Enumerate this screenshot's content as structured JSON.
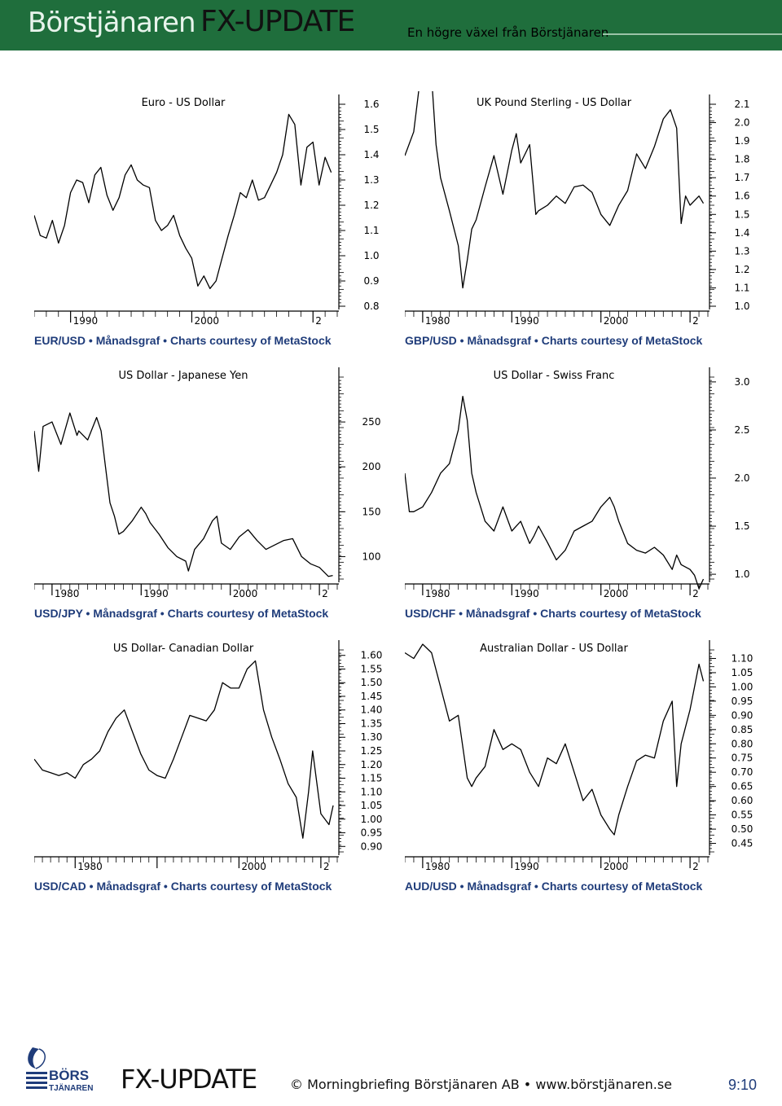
{
  "header": {
    "brand": "Börstjänaren",
    "product": "FX-UPDATE",
    "tagline": "En högre växel från Börstjänaren"
  },
  "chart_data": [
    {
      "type": "line",
      "title": "Euro - US Dollar",
      "caption": "EUR/USD • Månadsgraf • Charts courtesy of MetaStock",
      "x_ticks": [
        "1990",
        "2000",
        "2"
      ],
      "xlim": [
        1987,
        2012
      ],
      "y_ticks": [
        "0.8",
        "0.9",
        "1.0",
        "1.1",
        "1.2",
        "1.3",
        "1.4",
        "1.5",
        "1.6"
      ],
      "ylim": [
        0.8,
        1.6
      ],
      "x": [
        1987.0,
        1987.5,
        1988.0,
        1988.5,
        1989.0,
        1989.5,
        1990.0,
        1990.5,
        1991.0,
        1991.5,
        1992.0,
        1992.5,
        1993.0,
        1993.5,
        1994.0,
        1994.5,
        1995.0,
        1995.5,
        1996.0,
        1996.5,
        1997.0,
        1997.5,
        1998.0,
        1998.5,
        1999.0,
        1999.5,
        2000.0,
        2000.5,
        2001.0,
        2001.5,
        2002.0,
        2002.5,
        2003.0,
        2003.5,
        2004.0,
        2004.5,
        2005.0,
        2005.5,
        2006.0,
        2006.5,
        2007.0,
        2007.5,
        2008.0,
        2008.5,
        2009.0,
        2009.5,
        2010.0,
        2010.5,
        2011.0,
        2011.5
      ],
      "y": [
        1.16,
        1.08,
        1.07,
        1.14,
        1.05,
        1.12,
        1.25,
        1.3,
        1.29,
        1.21,
        1.32,
        1.35,
        1.24,
        1.18,
        1.23,
        1.32,
        1.36,
        1.3,
        1.28,
        1.27,
        1.14,
        1.1,
        1.12,
        1.16,
        1.08,
        1.03,
        0.99,
        0.88,
        0.92,
        0.87,
        0.9,
        0.99,
        1.08,
        1.16,
        1.25,
        1.23,
        1.3,
        1.22,
        1.23,
        1.28,
        1.33,
        1.4,
        1.56,
        1.52,
        1.28,
        1.43,
        1.45,
        1.28,
        1.39,
        1.33
      ]
    },
    {
      "type": "line",
      "title": "UK Pound Sterling - US Dollar",
      "caption": "GBP/USD • Månadsgraf • Charts courtesy of MetaStock",
      "x_ticks": [
        "1980",
        "1990",
        "2000",
        "2"
      ],
      "xlim": [
        1978,
        2012
      ],
      "y_ticks": [
        "1.0",
        "1.1",
        "1.2",
        "1.3",
        "1.4",
        "1.5",
        "1.6",
        "1.7",
        "1.8",
        "1.9",
        "2.0",
        "2.1"
      ],
      "ylim": [
        1.0,
        2.1
      ],
      "x": [
        1978,
        1979,
        1980,
        1980.8,
        1981.5,
        1982,
        1983,
        1984,
        1984.5,
        1985,
        1985.5,
        1986,
        1987,
        1988,
        1989,
        1990,
        1990.5,
        1991,
        1992,
        1992.7,
        1993,
        1994,
        1995,
        1996,
        1997,
        1998,
        1999,
        2000,
        2001,
        2002,
        2003,
        2004,
        2005,
        2006,
        2007,
        2007.8,
        2008.5,
        2009,
        2009.5,
        2010,
        2011,
        2011.5
      ],
      "y": [
        1.82,
        1.95,
        2.35,
        2.4,
        1.88,
        1.7,
        1.52,
        1.33,
        1.1,
        1.25,
        1.42,
        1.47,
        1.65,
        1.82,
        1.61,
        1.85,
        1.94,
        1.78,
        1.88,
        1.5,
        1.52,
        1.55,
        1.6,
        1.56,
        1.65,
        1.66,
        1.62,
        1.5,
        1.44,
        1.55,
        1.63,
        1.83,
        1.75,
        1.87,
        2.02,
        2.07,
        1.97,
        1.45,
        1.6,
        1.55,
        1.6,
        1.56
      ]
    },
    {
      "type": "line",
      "title": "US Dollar - Japanese Yen",
      "caption": "USD/JPY • Månadsgraf • Charts courtesy of MetaStock",
      "x_ticks": [
        "1980",
        "1990",
        "2000",
        "2"
      ],
      "xlim": [
        1978,
        2012
      ],
      "y_ticks": [
        "100",
        "150",
        "200",
        "250"
      ],
      "ylim": [
        75,
        300
      ],
      "x": [
        1978,
        1978.5,
        1979,
        1980,
        1981,
        1982,
        1982.8,
        1983,
        1984,
        1985,
        1985.5,
        1986,
        1986.5,
        1987,
        1987.5,
        1988,
        1989,
        1990,
        1990.5,
        1991,
        1992,
        1993,
        1994,
        1995,
        1995.3,
        1996,
        1997,
        1998,
        1998.5,
        1999,
        2000,
        2001,
        2002,
        2003,
        2004,
        2005,
        2006,
        2007,
        2008,
        2008.5,
        2009,
        2010,
        2011,
        2011.5
      ],
      "y": [
        240,
        195,
        245,
        250,
        225,
        260,
        235,
        240,
        230,
        255,
        240,
        200,
        160,
        145,
        125,
        128,
        140,
        155,
        148,
        138,
        125,
        110,
        100,
        95,
        84,
        108,
        120,
        140,
        145,
        115,
        108,
        122,
        130,
        118,
        108,
        113,
        118,
        120,
        100,
        96,
        92,
        88,
        78,
        79
      ]
    },
    {
      "type": "line",
      "title": "US Dollar - Swiss Franc",
      "caption": "USD/CHF • Månadsgraf • Charts courtesy of MetaStock",
      "x_ticks": [
        "1980",
        "1990",
        "2000",
        "2"
      ],
      "xlim": [
        1978,
        2012
      ],
      "y_ticks": [
        "1.0",
        "1.5",
        "2.0",
        "2.5",
        "3.0"
      ],
      "ylim": [
        0.95,
        3.05
      ],
      "x": [
        1978,
        1978.5,
        1979,
        1980,
        1981,
        1982,
        1983,
        1984,
        1984.5,
        1985,
        1985.5,
        1986,
        1987,
        1988,
        1989,
        1990,
        1991,
        1992,
        1992.5,
        1993,
        1994,
        1995,
        1996,
        1997,
        1998,
        1999,
        2000,
        2001,
        2001.5,
        2002,
        2003,
        2004,
        2005,
        2006,
        2007,
        2008,
        2008.5,
        2009,
        2010,
        2010.5,
        2011,
        2011.5
      ],
      "y": [
        2.05,
        1.65,
        1.65,
        1.7,
        1.85,
        2.05,
        2.15,
        2.5,
        2.85,
        2.6,
        2.05,
        1.85,
        1.55,
        1.45,
        1.7,
        1.45,
        1.55,
        1.32,
        1.4,
        1.5,
        1.33,
        1.15,
        1.25,
        1.45,
        1.5,
        1.55,
        1.7,
        1.8,
        1.7,
        1.55,
        1.32,
        1.25,
        1.22,
        1.28,
        1.2,
        1.05,
        1.2,
        1.1,
        1.05,
        0.99,
        0.85,
        0.95
      ]
    },
    {
      "type": "line",
      "title": "US Dollar- Canadian Dollar",
      "caption": "USD/CAD • Månadsgraf • Charts courtesy of MetaStock",
      "x_ticks": [
        "1980",
        "2000",
        "2"
      ],
      "xlim": [
        1975,
        2012
      ],
      "y_ticks": [
        "0.90",
        "0.95",
        "1.00",
        "1.05",
        "1.10",
        "1.15",
        "1.20",
        "1.25",
        "1.30",
        "1.35",
        "1.40",
        "1.45",
        "1.50",
        "1.55",
        "1.60"
      ],
      "ylim": [
        0.88,
        1.62
      ],
      "x": [
        1975,
        1976,
        1977,
        1978,
        1979,
        1980,
        1981,
        1982,
        1983,
        1984,
        1985,
        1986,
        1987,
        1988,
        1989,
        1990,
        1991,
        1992,
        1993,
        1994,
        1995,
        1996,
        1997,
        1998,
        1999,
        2000,
        2001,
        2002,
        2003,
        2004,
        2005,
        2006,
        2007,
        2007.8,
        2008.5,
        2009,
        2010,
        2011,
        2011.5
      ],
      "y": [
        1.22,
        1.18,
        1.17,
        1.16,
        1.17,
        1.15,
        1.2,
        1.22,
        1.25,
        1.32,
        1.37,
        1.4,
        1.32,
        1.24,
        1.18,
        1.16,
        1.15,
        1.22,
        1.3,
        1.38,
        1.37,
        1.36,
        1.4,
        1.5,
        1.48,
        1.48,
        1.55,
        1.58,
        1.4,
        1.3,
        1.22,
        1.13,
        1.08,
        0.93,
        1.1,
        1.25,
        1.02,
        0.98,
        1.05
      ]
    },
    {
      "type": "line",
      "title": "Australian Dollar - US Dollar",
      "caption": "AUD/USD • Månadsgraf • Charts courtesy of MetaStock",
      "x_ticks": [
        "1980",
        "1990",
        "2000",
        "2"
      ],
      "xlim": [
        1978,
        2012
      ],
      "y_ticks": [
        "0.45",
        "0.50",
        "0.55",
        "0.60",
        "0.65",
        "0.70",
        "0.75",
        "0.80",
        "0.85",
        "0.90",
        "0.95",
        "1.00",
        "1.05",
        "1.10"
      ],
      "ylim": [
        0.42,
        1.13
      ],
      "x": [
        1978,
        1979,
        1980,
        1981,
        1982,
        1983,
        1984,
        1985,
        1985.5,
        1986,
        1987,
        1988,
        1989,
        1990,
        1991,
        1992,
        1993,
        1994,
        1995,
        1996,
        1997,
        1998,
        1999,
        2000,
        2001,
        2001.5,
        2002,
        2003,
        2004,
        2005,
        2006,
        2007,
        2008,
        2008.5,
        2009,
        2010,
        2011,
        2011.5
      ],
      "y": [
        1.12,
        1.1,
        1.15,
        1.12,
        1.0,
        0.88,
        0.9,
        0.68,
        0.65,
        0.68,
        0.72,
        0.85,
        0.78,
        0.8,
        0.78,
        0.7,
        0.65,
        0.75,
        0.73,
        0.8,
        0.7,
        0.6,
        0.64,
        0.55,
        0.5,
        0.48,
        0.55,
        0.65,
        0.74,
        0.76,
        0.75,
        0.88,
        0.95,
        0.65,
        0.8,
        0.92,
        1.08,
        1.02
      ]
    }
  ],
  "footer": {
    "logo_word": "BÖRS",
    "logo_sub": "TJÄNAREN",
    "product": "FX-UPDATE",
    "copyright": "© Morningbriefing Börstjänaren AB • www.börstjänaren.se",
    "page": "9:10"
  }
}
